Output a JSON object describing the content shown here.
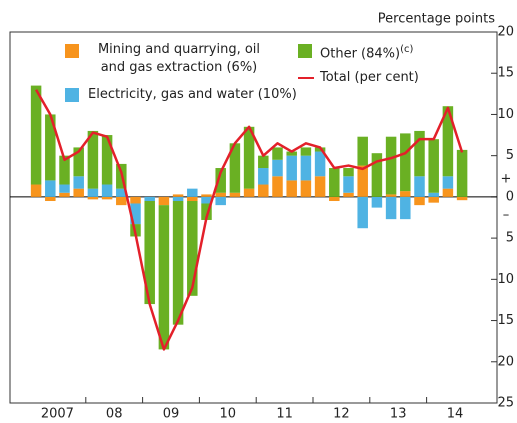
{
  "chart_data": {
    "type": "bar",
    "stacked": true,
    "y_axis_label": "Percentage points",
    "sign_labels": [
      "+",
      "–"
    ],
    "categories": [
      null,
      "2007",
      null,
      null,
      null,
      "08",
      null,
      null,
      null,
      "09",
      null,
      null,
      null,
      "10",
      null,
      null,
      null,
      "11",
      null,
      null,
      null,
      "12",
      null,
      null,
      null,
      "13",
      null,
      null,
      null,
      "14",
      null
    ],
    "series": [
      {
        "name": "Mining and quarrying, oil and gas extraction (6%)",
        "color": "#f7941d",
        "values": [
          1.5,
          -0.5,
          0.5,
          1,
          -0.3,
          -0.3,
          -1,
          -0.8,
          0,
          -1,
          0.3,
          -0.5,
          0.3,
          0.5,
          0.5,
          1,
          1.5,
          2.5,
          2,
          2,
          2.5,
          -0.5,
          0.5,
          3.8,
          0,
          0.3,
          0.7,
          -1,
          -0.7,
          1,
          -0.4
        ]
      },
      {
        "name": "Electricity, gas and water (10%)",
        "color": "#4fb3e3",
        "values": [
          0,
          2,
          1,
          1.5,
          1,
          1.5,
          1,
          -2.5,
          -0.5,
          0,
          -0.5,
          1,
          -0.8,
          -1,
          0,
          0,
          2,
          2,
          3,
          3,
          3,
          0,
          2,
          -3.8,
          -1.3,
          -2.7,
          -2.7,
          2.5,
          0.5,
          1.5,
          0
        ]
      },
      {
        "name": "Other (84%)",
        "footnote": "(c)",
        "color": "#6ab023",
        "values": [
          12,
          8,
          3.5,
          3.5,
          7,
          6,
          3,
          -1.5,
          -12.5,
          -17.5,
          -15,
          -11.5,
          -2,
          3,
          6,
          7.5,
          1.5,
          1.5,
          0.5,
          1,
          0.5,
          3.5,
          1,
          3.5,
          5.3,
          7,
          7,
          5.5,
          6.5,
          8.5,
          5.7
        ]
      },
      {
        "name": "Total (per cent)",
        "type": "line",
        "color": "#e3202a",
        "values": [
          13,
          10,
          4.5,
          5.5,
          7.8,
          7.3,
          3,
          -4.5,
          -13,
          -18.5,
          -15,
          -11,
          -2.5,
          3,
          6.5,
          8.5,
          5,
          6.5,
          5.5,
          6.5,
          6,
          3.5,
          3.8,
          3.4,
          4.3,
          4.7,
          5.3,
          7,
          7,
          10.8,
          5.4
        ]
      }
    ],
    "ylim": [
      -25,
      20
    ],
    "yticks": [
      {
        "value": -25,
        "label": "25"
      },
      {
        "value": -20,
        "label": "20"
      },
      {
        "value": -15,
        "label": "15"
      },
      {
        "value": -10,
        "label": "10"
      },
      {
        "value": -5,
        "label": "5"
      },
      0,
      5,
      10,
      15,
      20
    ]
  }
}
